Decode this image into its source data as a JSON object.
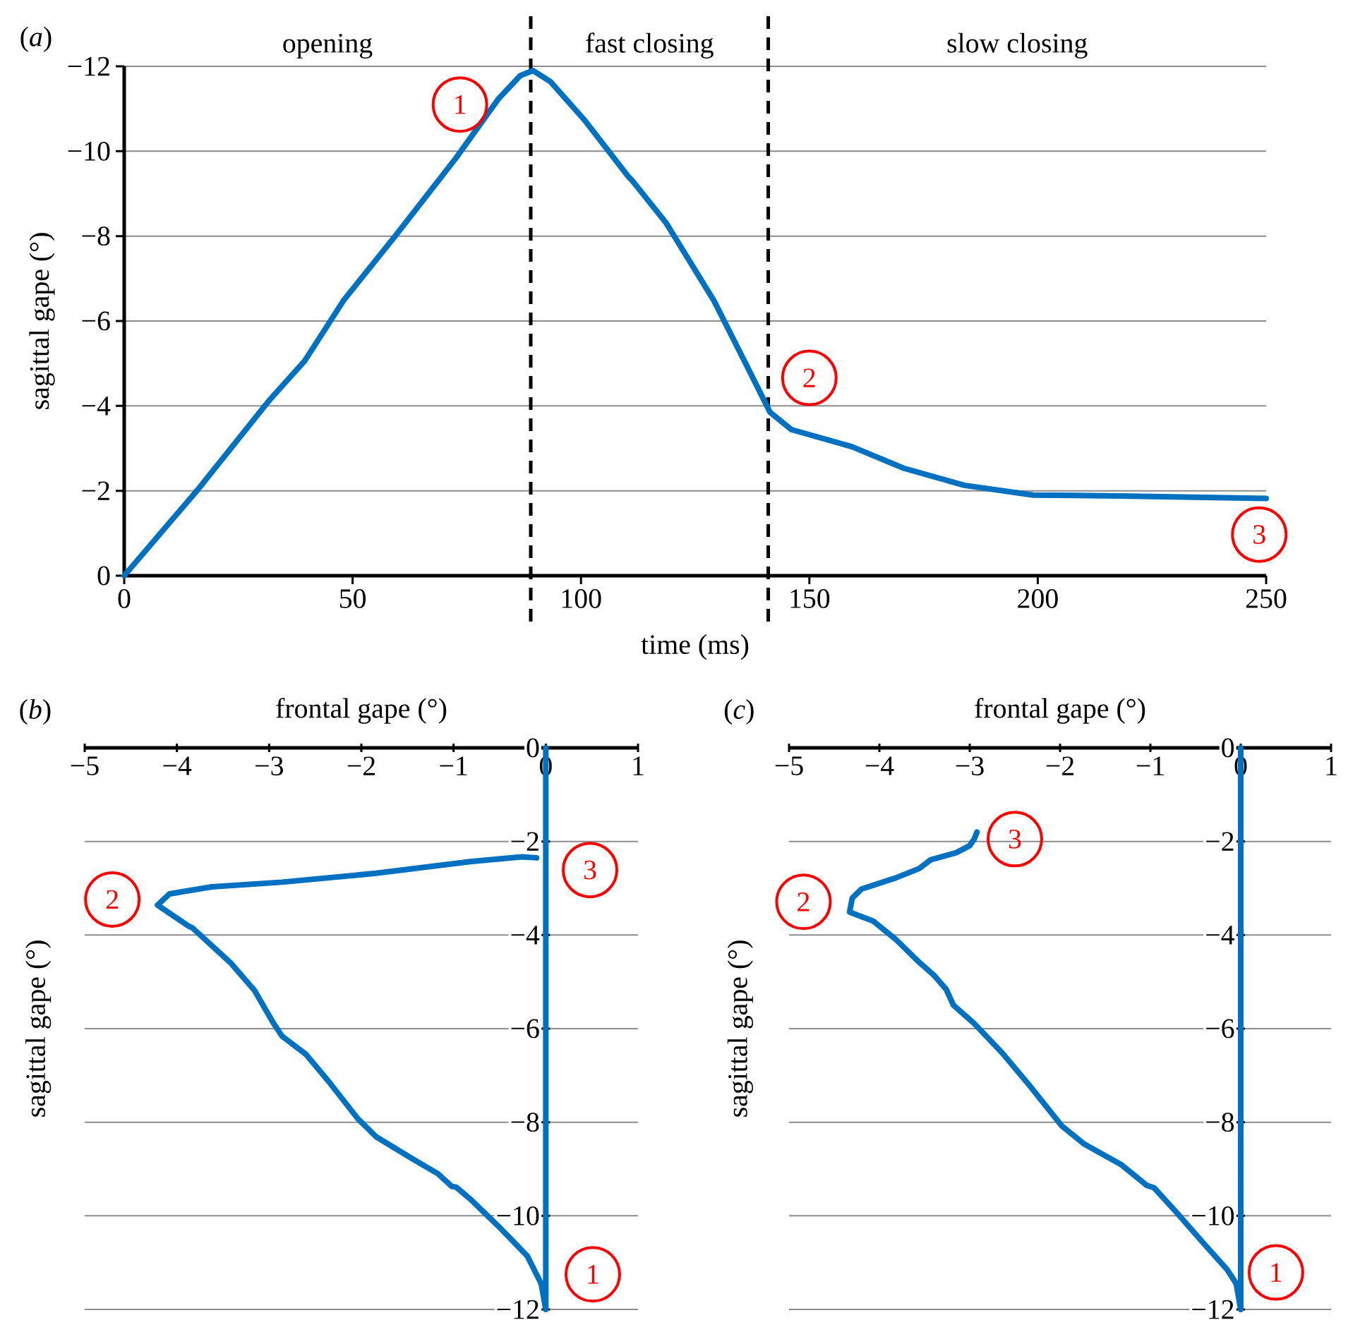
{
  "chart_data": [
    {
      "type": "line",
      "title": "(*a*)",
      "xlabel": "time (ms)",
      "ylabel": "sagittal gape (°)",
      "color": "#0070c0",
      "grid": "y",
      "x": [
        0,
        15.9,
        31.9,
        39.5,
        48.0,
        59.3,
        72.5,
        81.9,
        86.7,
        89.5,
        93.3,
        100.8,
        110.3,
        111.2,
        118.7,
        129.1,
        136.7,
        141.4,
        146.1,
        159.3,
        170.7,
        183.9,
        199.0,
        217.9,
        250
      ],
      "values": [
        0,
        -2.0,
        -4.15,
        -5.06,
        -6.48,
        -8.0,
        -9.82,
        -11.23,
        -11.78,
        -11.9,
        -11.64,
        -10.73,
        -9.41,
        -9.31,
        -8.3,
        -6.48,
        -4.86,
        -3.85,
        -3.44,
        -3.04,
        -2.53,
        -2.13,
        -1.9,
        -1.88,
        -1.82
      ],
      "xlim": [
        0,
        250
      ],
      "ylim": [
        0,
        -12
      ],
      "xticks": [
        0,
        50,
        100,
        150,
        200,
        250
      ],
      "yticks": [
        0,
        {
          "value": -2,
          "label": "−2"
        },
        {
          "value": -4,
          "label": "−4"
        },
        {
          "value": -6,
          "label": "−6"
        },
        {
          "value": -8,
          "label": "−8"
        },
        {
          "value": -10,
          "label": "−10"
        },
        {
          "value": -12,
          "label": "−12"
        }
      ],
      "ref_lines": [
        {
          "axis": "x",
          "value": 89,
          "color": "#000000",
          "line_style": "dashed"
        },
        {
          "axis": "x",
          "value": 141,
          "color": "#000000",
          "line_style": "dashed"
        }
      ],
      "annotations": [
        "opening",
        "fast closing",
        "slow closing",
        {
          "text": "1",
          "x": 73.5,
          "y": -11.1
        },
        {
          "text": "2",
          "x": 150,
          "y": -4.66
        },
        {
          "text": "3",
          "x": 248.5,
          "y": -0.97
        }
      ]
    },
    {
      "type": "line",
      "title": "(*b*)",
      "xlabel": "frontal gape (°)",
      "ylabel": "sagittal gape (°)",
      "grid": "y",
      "color": "#0070c0",
      "x": [
        0,
        0,
        -0.05,
        -0.2,
        -0.51,
        -0.82,
        -0.97,
        -1.02,
        -1.17,
        -1.43,
        -1.84,
        -2.04,
        -2.35,
        -2.6,
        -2.86,
        -2.96,
        -3.16,
        -3.42,
        -3.83,
        -3.88,
        -4.21,
        -4.08,
        -3.62,
        -2.86,
        -1.84,
        -0.82,
        -0.26,
        -0.1
      ],
      "values": [
        0,
        -12,
        -11.45,
        -10.86,
        -10.23,
        -9.64,
        -9.39,
        -9.37,
        -9.1,
        -8.8,
        -8.31,
        -7.92,
        -7.14,
        -6.55,
        -6.16,
        -5.86,
        -5.18,
        -4.59,
        -3.85,
        -3.8,
        -3.36,
        -3.12,
        -2.97,
        -2.87,
        -2.68,
        -2.43,
        -2.33,
        -2.35
      ],
      "xlim": [
        -5,
        1
      ],
      "ylim": [
        -12,
        0
      ],
      "xticks": [
        {
          "value": -5,
          "label": "−5"
        },
        {
          "value": -4,
          "label": "−4"
        },
        {
          "value": -3,
          "label": "−3"
        },
        {
          "value": -2,
          "label": "−2"
        },
        {
          "value": -1,
          "label": "−1"
        },
        0,
        1
      ],
      "yticks": [
        0,
        {
          "value": -2,
          "label": "−2"
        },
        {
          "value": -4,
          "label": "−4"
        },
        {
          "value": -6,
          "label": "−6"
        },
        {
          "value": -8,
          "label": "−8"
        },
        {
          "value": -10,
          "label": "−10"
        },
        {
          "value": -12,
          "label": "−12"
        }
      ],
      "annotations": [
        {
          "text": "1",
          "x": 0.51,
          "y": -11.25
        },
        {
          "text": "2",
          "x": -4.7,
          "y": -3.24
        },
        {
          "text": "3",
          "x": 0.48,
          "y": -2.61
        }
      ]
    },
    {
      "type": "line",
      "title": "(*c*)",
      "xlabel": "frontal gape (°)",
      "ylabel": "sagittal gape (°)",
      "grid": "y",
      "color": "#0070c0",
      "x": [
        0,
        0,
        -0.05,
        -0.15,
        -0.4,
        -0.71,
        -0.96,
        -1.04,
        -1.32,
        -1.73,
        -1.98,
        -2.34,
        -2.64,
        -2.95,
        -3.18,
        -3.26,
        -3.39,
        -3.56,
        -3.82,
        -4.07,
        -4.33,
        -4.3,
        -4.2,
        -3.82,
        -3.56,
        -3.43,
        -3.15,
        -3.0,
        -2.95,
        -2.92
      ],
      "values": [
        0,
        -12,
        -11.45,
        -11.15,
        -10.61,
        -9.93,
        -9.4,
        -9.35,
        -8.91,
        -8.47,
        -8.08,
        -7.21,
        -6.52,
        -5.89,
        -5.5,
        -5.16,
        -4.87,
        -4.58,
        -4.09,
        -3.7,
        -3.51,
        -3.21,
        -3.02,
        -2.78,
        -2.58,
        -2.39,
        -2.24,
        -2.09,
        -1.95,
        -1.8
      ],
      "xlim": [
        -5,
        1
      ],
      "ylim": [
        -12,
        0
      ],
      "xticks": [
        {
          "value": -5,
          "label": "−5"
        },
        {
          "value": -4,
          "label": "−4"
        },
        {
          "value": -3,
          "label": "−3"
        },
        {
          "value": -2,
          "label": "−2"
        },
        {
          "value": -1,
          "label": "−1"
        },
        0,
        1
      ],
      "yticks": [
        0,
        {
          "value": -2,
          "label": "−2"
        },
        {
          "value": -4,
          "label": "−4"
        },
        {
          "value": -6,
          "label": "−6"
        },
        {
          "value": -8,
          "label": "−8"
        },
        {
          "value": -10,
          "label": "−10"
        },
        {
          "value": -12,
          "label": "−12"
        }
      ],
      "annotations": [
        {
          "text": "1",
          "x": 0.39,
          "y": -11.21
        },
        {
          "text": "2",
          "x": -4.84,
          "y": -3.29
        },
        {
          "text": "3",
          "x": -2.5,
          "y": -1.95
        }
      ]
    }
  ]
}
